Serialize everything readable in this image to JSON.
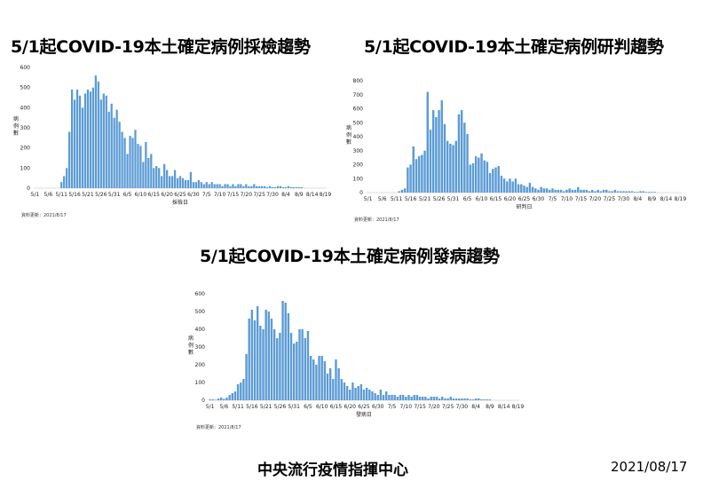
{
  "footer": {
    "org": "中央流行疫情指揮中心",
    "date": "2021/08/17"
  },
  "chart_data": [
    {
      "id": "sampling",
      "type": "bar",
      "title": "5/1起COVID-19本土確定病例採檢趨勢",
      "xlabel": "採檢日",
      "ylabel": "病例數",
      "update_note": "資料更新：2021/8/17",
      "ylim": [
        0,
        600
      ],
      "yticks": [
        0,
        100,
        200,
        300,
        400,
        500,
        600
      ],
      "xticks": [
        "5/1",
        "5/6",
        "5/11",
        "5/16",
        "5/21",
        "5/26",
        "5/31",
        "6/5",
        "6/10",
        "6/15",
        "6/20",
        "6/25",
        "6/30",
        "7/5",
        "7/10",
        "7/15",
        "7/20",
        "7/25",
        "7/30",
        "8/4",
        "8/9",
        "8/14",
        "8/19"
      ],
      "start_date": "5/1",
      "values": [
        0,
        0,
        0,
        0,
        0,
        0,
        0,
        0,
        0,
        0,
        30,
        60,
        100,
        280,
        490,
        440,
        490,
        460,
        400,
        470,
        490,
        480,
        500,
        560,
        530,
        440,
        470,
        460,
        380,
        420,
        350,
        390,
        330,
        280,
        250,
        170,
        260,
        250,
        290,
        220,
        210,
        130,
        230,
        150,
        170,
        100,
        110,
        100,
        60,
        120,
        90,
        60,
        60,
        90,
        50,
        60,
        50,
        40,
        40,
        80,
        30,
        30,
        40,
        30,
        20,
        30,
        20,
        30,
        20,
        20,
        20,
        10,
        20,
        20,
        10,
        20,
        10,
        20,
        20,
        10,
        20,
        10,
        10,
        20,
        10,
        10,
        10,
        10,
        5,
        10,
        5,
        5,
        10,
        10,
        5,
        5,
        10,
        5,
        5,
        5,
        5,
        5,
        0,
        0,
        0,
        0,
        0,
        0,
        0,
        0,
        0
      ]
    },
    {
      "id": "confirmation",
      "type": "bar",
      "title": "5/1起COVID-19本土確定病例研判趨勢",
      "xlabel": "研判日",
      "ylabel": "病例數",
      "update_note": "資料更新：2021/8/17",
      "ylim": [
        0,
        800
      ],
      "yticks": [
        0,
        100,
        200,
        300,
        400,
        500,
        600,
        700,
        800
      ],
      "xticks": [
        "5/1",
        "5/6",
        "5/11",
        "5/16",
        "5/21",
        "5/26",
        "5/31",
        "6/5",
        "6/10",
        "6/15",
        "6/20",
        "6/25",
        "6/30",
        "7/5",
        "7/10",
        "7/15",
        "7/20",
        "7/25",
        "7/30",
        "8/4",
        "8/9",
        "8/14",
        "8/19"
      ],
      "start_date": "5/1",
      "values": [
        0,
        0,
        0,
        0,
        0,
        0,
        0,
        0,
        0,
        0,
        0,
        10,
        20,
        30,
        180,
        200,
        330,
        240,
        260,
        270,
        300,
        720,
        450,
        590,
        540,
        590,
        660,
        490,
        370,
        350,
        340,
        370,
        560,
        590,
        500,
        420,
        200,
        210,
        260,
        250,
        280,
        230,
        220,
        140,
        170,
        180,
        190,
        120,
        100,
        80,
        100,
        80,
        100,
        60,
        60,
        50,
        40,
        70,
        40,
        30,
        20,
        40,
        30,
        30,
        20,
        30,
        20,
        20,
        20,
        10,
        20,
        30,
        20,
        20,
        40,
        20,
        20,
        20,
        10,
        20,
        10,
        20,
        10,
        20,
        20,
        10,
        10,
        20,
        10,
        10,
        10,
        10,
        10,
        10,
        5,
        5,
        10,
        10,
        5,
        5,
        5,
        5,
        0,
        0,
        0,
        0,
        0,
        0,
        0,
        0,
        0
      ]
    },
    {
      "id": "onset",
      "type": "bar",
      "title": "5/1起COVID-19本土確定病例發病趨勢",
      "xlabel": "發病日",
      "ylabel": "病例數",
      "update_note": "資料更新：2021/8/17",
      "ylim": [
        0,
        600
      ],
      "yticks": [
        0,
        100,
        200,
        300,
        400,
        500,
        600
      ],
      "xticks": [
        "5/1",
        "5/6",
        "5/11",
        "5/16",
        "5/21",
        "5/26",
        "5/31",
        "6/5",
        "6/10",
        "6/15",
        "6/20",
        "6/25",
        "6/30",
        "7/5",
        "7/10",
        "7/15",
        "7/20",
        "7/25",
        "7/30",
        "8/4",
        "8/9",
        "8/14",
        "8/19"
      ],
      "start_date": "5/1",
      "values": [
        5,
        5,
        3,
        10,
        15,
        8,
        15,
        30,
        40,
        50,
        90,
        100,
        120,
        260,
        460,
        510,
        450,
        530,
        420,
        400,
        510,
        500,
        460,
        400,
        350,
        380,
        560,
        550,
        490,
        380,
        320,
        330,
        400,
        400,
        350,
        390,
        250,
        230,
        200,
        250,
        250,
        220,
        150,
        180,
        120,
        230,
        180,
        120,
        100,
        80,
        60,
        100,
        70,
        80,
        90,
        60,
        70,
        60,
        50,
        40,
        30,
        60,
        30,
        50,
        30,
        30,
        30,
        20,
        30,
        30,
        20,
        30,
        20,
        30,
        30,
        20,
        20,
        20,
        10,
        20,
        20,
        20,
        10,
        20,
        10,
        10,
        20,
        10,
        10,
        10,
        10,
        10,
        10,
        5,
        5,
        10,
        10,
        5,
        5,
        5,
        5,
        0,
        0,
        0,
        0,
        0,
        0,
        0,
        0,
        0,
        0,
        0
      ]
    }
  ]
}
